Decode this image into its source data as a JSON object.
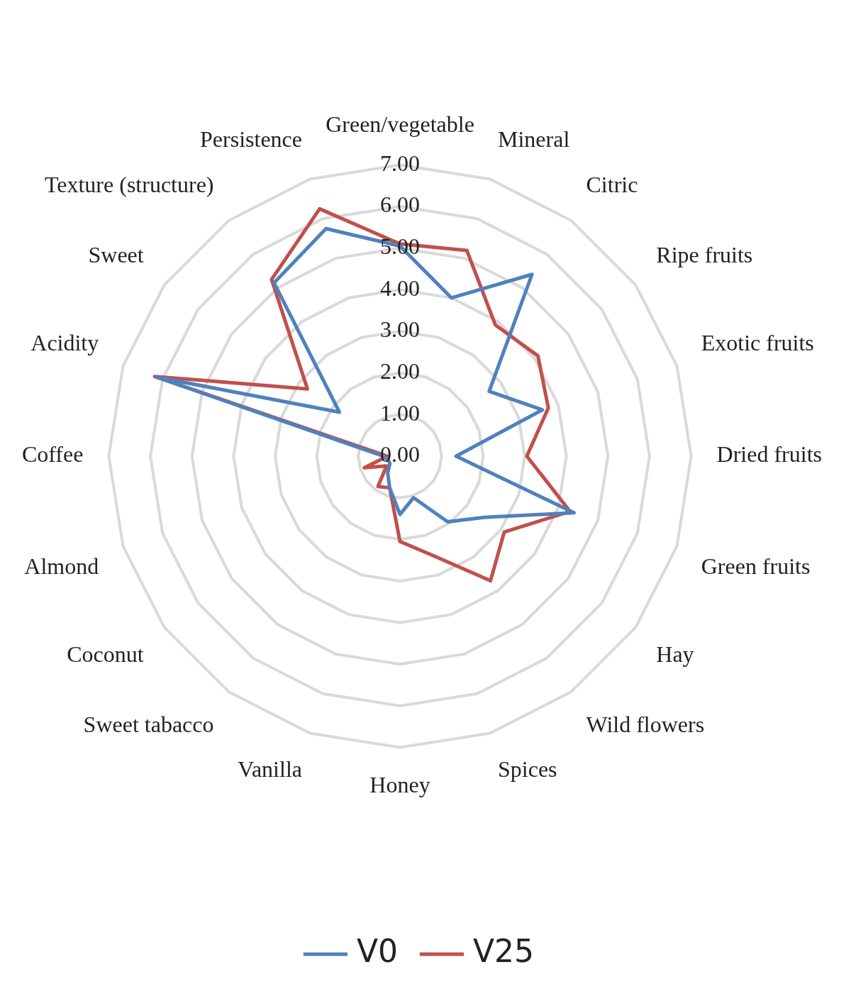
{
  "chart_data": {
    "type": "radar",
    "categories": [
      "Green/vegetable",
      "Mineral",
      "Citric",
      "Ripe fruits",
      "Exotic fruits",
      "Dried fruits",
      "Green fruits",
      "Hay",
      "Wild flowers",
      "Spices",
      "Honey",
      "Vanilla",
      "Sweet tabacco",
      "Coconut",
      "Almond",
      "Coffee",
      "Acidity",
      "Sweet",
      "Texture (structure)",
      "Persistence"
    ],
    "series": [
      {
        "name": "V0",
        "color": "#4f81bd",
        "values": [
          5.05,
          4.0,
          5.4,
          2.65,
          3.6,
          1.35,
          4.4,
          2.5,
          1.95,
          1.05,
          1.4,
          0.8,
          0.5,
          0.3,
          0.3,
          0.4,
          6.15,
          1.8,
          5.15,
          5.75
        ]
      },
      {
        "name": "V25",
        "color": "#c0504d",
        "values": [
          5.1,
          5.2,
          3.9,
          4.1,
          3.75,
          3.05,
          4.3,
          3.1,
          3.7,
          2.5,
          2.05,
          0.8,
          0.9,
          0.4,
          0.9,
          0.3,
          6.2,
          2.75,
          5.25,
          6.25
        ]
      }
    ],
    "ylim": [
      0,
      7
    ],
    "yticks": [
      {
        "value": 0,
        "label": "0.00"
      },
      {
        "value": 1,
        "label": "1.00"
      },
      {
        "value": 2,
        "label": "2.00"
      },
      {
        "value": 3,
        "label": "3.00"
      },
      {
        "value": 4,
        "label": "4.00"
      },
      {
        "value": 5,
        "label": "5.00"
      },
      {
        "value": 6,
        "label": "6.00"
      },
      {
        "value": 7,
        "label": "7.00"
      }
    ],
    "grid": true,
    "legend": "bottom",
    "marker": "none",
    "line_style": "solid"
  }
}
